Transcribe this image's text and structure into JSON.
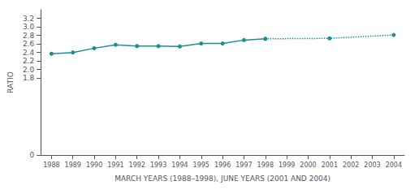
{
  "chart_data": {
    "type": "line",
    "xlabel": "MARCH YEARS (1988–1998), JUNE YEARS (2001 AND 2004)",
    "ylabel": "RATIO",
    "series": [
      {
        "x": [
          1988,
          1989,
          1990,
          1991,
          1992,
          1993,
          1994,
          1995,
          1996,
          1997,
          1998
        ],
        "values": [
          2.37,
          2.4,
          2.5,
          2.58,
          2.55,
          2.55,
          2.54,
          2.61,
          2.61,
          2.69,
          2.72
        ],
        "color": "#1a9090",
        "line_style": "solid",
        "marker": "circle"
      },
      {
        "x": [
          1998,
          2001,
          2004
        ],
        "values": [
          2.72,
          2.73,
          2.81
        ],
        "color": "#1a9090",
        "line_style": "dotted",
        "marker": "circle"
      }
    ],
    "xlim": [
      1987.5,
      2004.5
    ],
    "xticks": [
      1988,
      1989,
      1990,
      1991,
      1992,
      1993,
      1994,
      1995,
      1996,
      1997,
      1998,
      1999,
      2000,
      2001,
      2002,
      2003,
      2004
    ],
    "ylim": [
      0,
      3.4
    ],
    "yticks": [
      0,
      1.8,
      {
        "value": 2.0,
        "label": "2.0"
      },
      2.2,
      2.4,
      2.6,
      2.8,
      {
        "value": 3.0,
        "label": "3.0"
      },
      3.2
    ],
    "grid": false
  }
}
